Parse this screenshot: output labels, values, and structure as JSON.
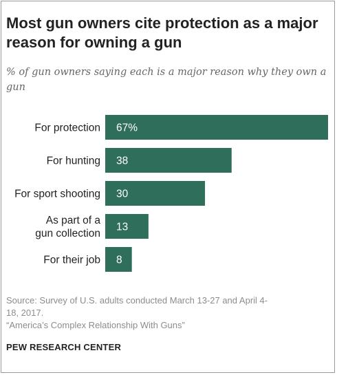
{
  "chart_data": {
    "type": "bar",
    "orientation": "horizontal",
    "title": "Most gun owners cite protection as a major reason for owning a gun",
    "subtitle": "% of gun owners saying each is a major reason why they own a gun",
    "categories": [
      [
        "For protection"
      ],
      [
        "For hunting"
      ],
      [
        "For sport shooting"
      ],
      [
        "As part of a",
        "gun collection"
      ],
      [
        "For their job"
      ]
    ],
    "values": [
      67,
      38,
      30,
      13,
      8
    ],
    "value_labels": [
      "67%",
      "38",
      "30",
      "13",
      "8"
    ],
    "xlim": [
      0,
      67
    ],
    "bar_color": "#306e5c",
    "grid": false
  },
  "footer": {
    "source_line1": "Source: Survey of U.S. adults conducted March 13-27 and April 4-",
    "source_line2": "18, 2017.",
    "source_line3": "“America’s Complex Relationship With Guns”",
    "logo": "PEW RESEARCH CENTER"
  }
}
